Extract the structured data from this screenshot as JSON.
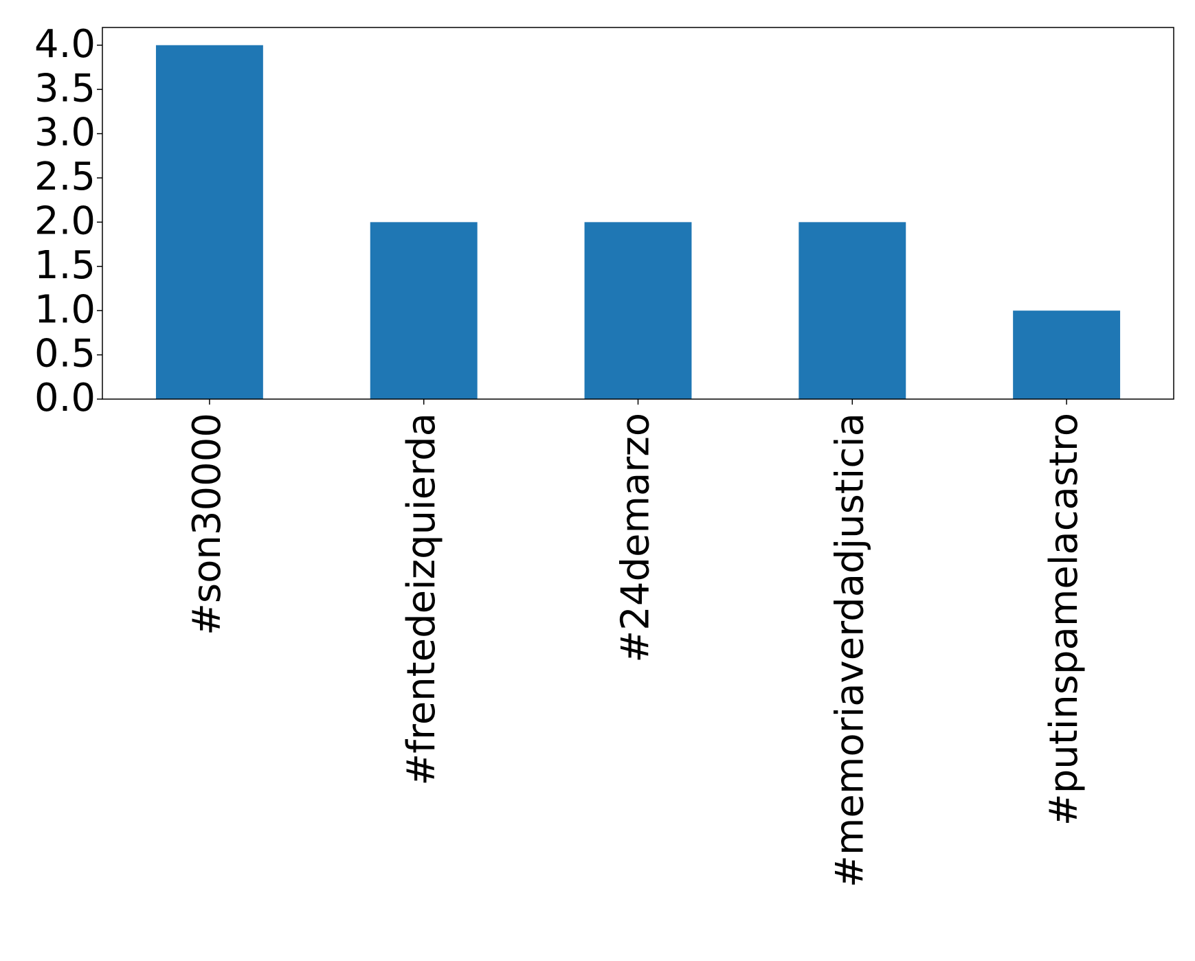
{
  "chart_data": {
    "type": "bar",
    "categories": [
      "#son30000",
      "#frentedeizquierda",
      "#24demarzo",
      "#memoriaverdadjusticia",
      "#putinspamelacastro"
    ],
    "values": [
      4,
      2,
      2,
      2,
      1
    ],
    "color": "#1f77b4",
    "ylim": [
      0,
      4.2
    ],
    "yticks": [
      {
        "value": 0,
        "label": "0.0"
      },
      {
        "value": 0.5,
        "label": "0.5"
      },
      {
        "value": 1,
        "label": "1.0"
      },
      {
        "value": 1.5,
        "label": "1.5"
      },
      {
        "value": 2,
        "label": "2.0"
      },
      {
        "value": 2.5,
        "label": "2.5"
      },
      {
        "value": 3,
        "label": "3.0"
      },
      {
        "value": 3.5,
        "label": "3.5"
      },
      {
        "value": 4,
        "label": "4.0"
      }
    ],
    "grid": false
  }
}
